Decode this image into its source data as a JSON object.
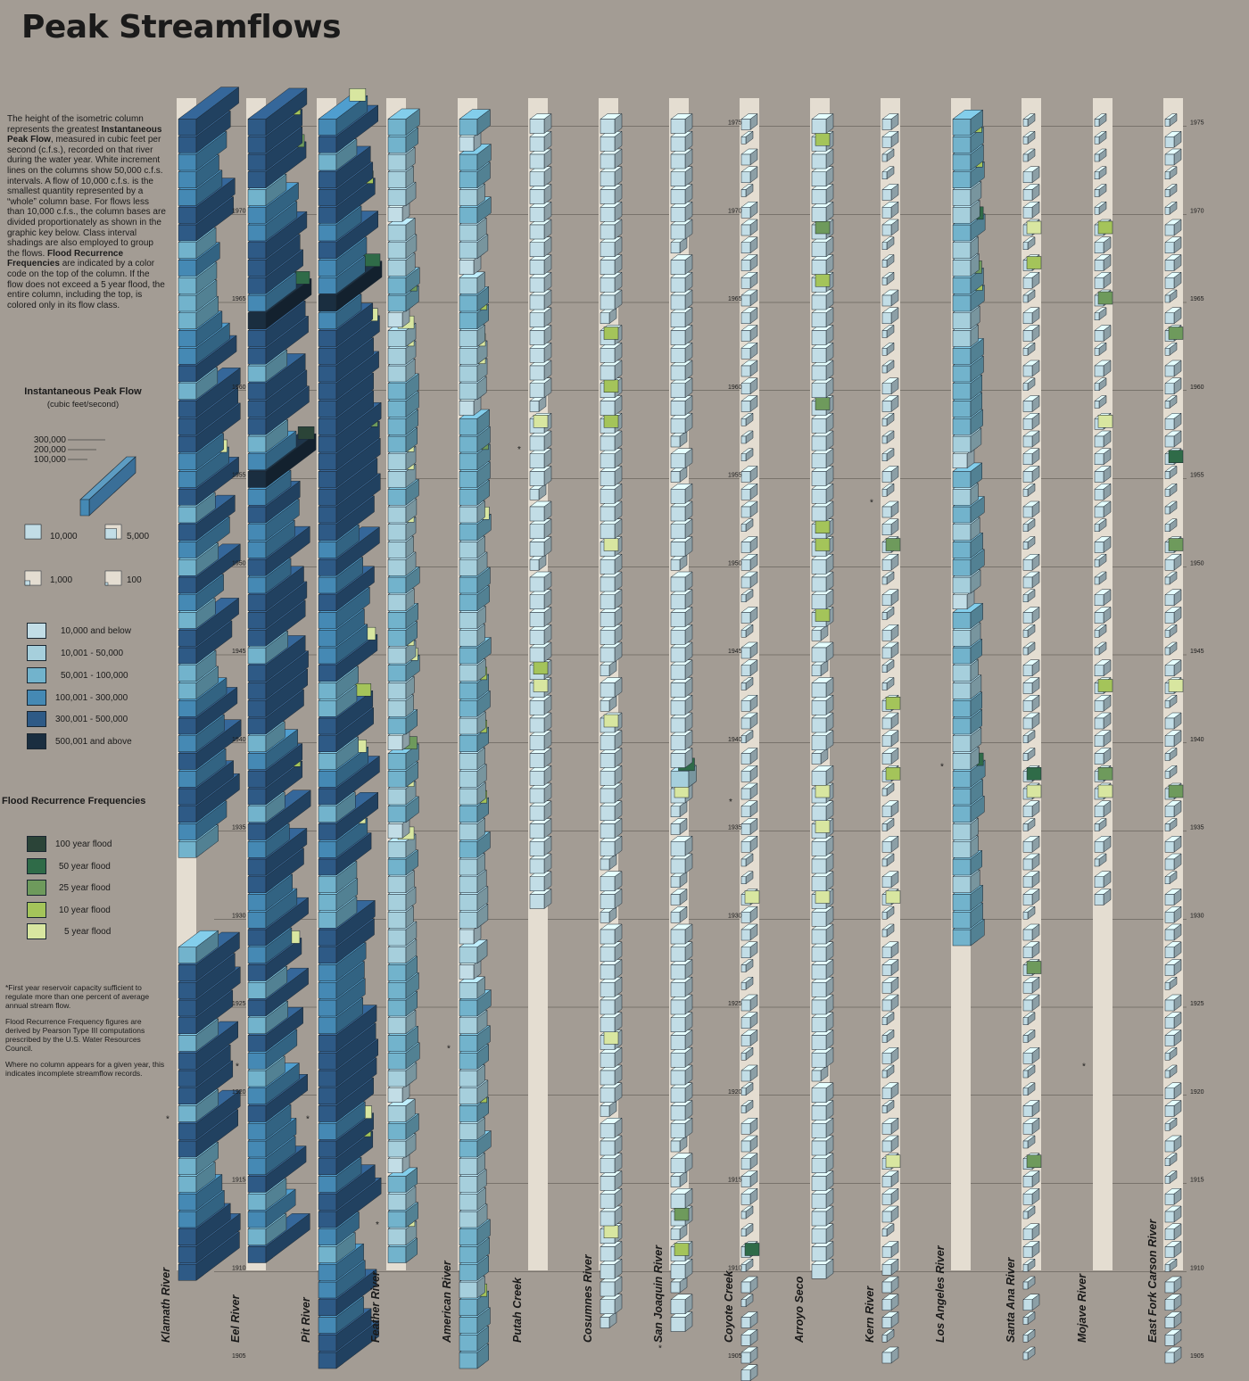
{
  "title": "Peak Streamflows",
  "intro": {
    "p1": "The height of the isometric column represents the greatest ",
    "b1": "Instantaneous Peak Flow",
    "p2": ", measured in cubic feet per second (c.f.s.), recorded on that river during the water year. White increment lines on the columns show 50,000 c.f.s. intervals. A flow of 10,000 c.f.s. is the smallest quantity represented by a “whole” column base. For flows less than 10,000 c.f.s., the column bases are divided proportionately as shown in the graphic key below. Class interval shadings are also employed to group the flows. ",
    "b2": "Flood Recurrence Frequencies",
    "p3": " are indicated by a color code on the top of the column. If the flow does not exceed a 5 year flood, the entire column, including the top, is colored only in its flow class."
  },
  "key": {
    "title": "Instantaneous Peak Flow",
    "subtitle": "(cubic feet/second)",
    "iso_labels": [
      "300,000",
      "200,000",
      "100,000"
    ],
    "base_labels": [
      "10,000",
      "5,000",
      "1,000",
      "100"
    ],
    "base_fracs": [
      1,
      0.5,
      0.1,
      0.01
    ]
  },
  "flow_classes": [
    {
      "label": "10,000 and below",
      "color": "#c2dde6"
    },
    {
      "label": "10,001 - 50,000",
      "color": "#a6cfdc"
    },
    {
      "label": "50,001 - 100,000",
      "color": "#72b3cc"
    },
    {
      "label": "100,001 - 300,000",
      "color": "#4589b4"
    },
    {
      "label": "300,001 - 500,000",
      "color": "#2e5a86"
    },
    {
      "label": "500,001 and above",
      "color": "#1a2e40"
    }
  ],
  "flood_frequencies": {
    "title": "Flood Recurrence Frequencies",
    "items": [
      {
        "label": "100 year flood",
        "color": "#2b4438"
      },
      {
        "label": "50 year flood",
        "color": "#2f6b48"
      },
      {
        "label": "25 year flood",
        "color": "#6e9a5c"
      },
      {
        "label": "10 year flood",
        "color": "#a4c45a"
      },
      {
        "label": "5 year flood",
        "color": "#d8e6a0"
      }
    ]
  },
  "notes": [
    "*First year reservoir capacity sufficient to regulate more than one percent of average annual stream flow.",
    "Flood Recurrence Frequency figures are derived by Pearson Type III computations prescribed by the U.S. Water Resources Council.",
    "Where no column appears for a given year, this indicates incomplete streamflow records."
  ],
  "chart_data": {
    "type": "isometric column chart",
    "title": "Peak Streamflows",
    "y": "water year",
    "years_range": [
      1905,
      1976
    ],
    "year_ticks": [
      1905,
      1910,
      1915,
      1920,
      1925,
      1930,
      1935,
      1940,
      1945,
      1950,
      1955,
      1960,
      1965,
      1970,
      1975
    ],
    "value_unit": "cubic feet/second",
    "increment": 50000,
    "rivers": [
      {
        "name": "Klamath River",
        "level": 3,
        "start": 1910,
        "gap": [
          1929,
          1933
        ],
        "reservoir_year": 1919,
        "floods": {
          "1955": 5
        }
      },
      {
        "name": "Eel River",
        "level": 3,
        "start": 1911,
        "reservoir_year": 1922,
        "floods": {
          "1964": 2,
          "1955": 1,
          "1974": 4,
          "1972": 3,
          "1937": 4,
          "1927": 5
        }
      },
      {
        "name": "Pit River",
        "level": 3,
        "start": 1905,
        "reservoir_year": 1919,
        "floods": {
          "1975": 5,
          "1970": 4,
          "1965": 2,
          "1962": 5,
          "1956": 3,
          "1944": 5,
          "1941": 4,
          "1938": 5,
          "1934": 5,
          "1917": 5,
          "1916": 4
        }
      },
      {
        "name": "Feather River",
        "level": 2,
        "start": 1911,
        "reservoir_year": 1913,
        "floods": {
          "1965": 3,
          "1963": 5,
          "1962": 5,
          "1956": 5,
          "1955": 5,
          "1952": 5,
          "1945": 5,
          "1944": 5,
          "1939": 3,
          "1937": 5,
          "1934": 5,
          "1912": 5
        }
      },
      {
        "name": "American River",
        "level": 2,
        "start": 1905,
        "reservoir_year": 1923,
        "floods": {
          "1964": 4,
          "1962": 5,
          "1961": 5,
          "1956": 3,
          "1952": 5,
          "1943": 4,
          "1940": 4,
          "1936": 4,
          "1919": 4,
          "1908": 4
        }
      },
      {
        "name": "Putah Creek",
        "level": 1,
        "start": 1931,
        "reservoir_year": 1957,
        "floods": {
          "1958": 5,
          "1944": 4,
          "1943": 5
        }
      },
      {
        "name": "Cosumnes River",
        "level": 1,
        "start": 1907,
        "floods": {
          "1963": 4,
          "1960": 4,
          "1958": 4,
          "1951": 5,
          "1941": 5,
          "1923": 5,
          "1912": 5
        }
      },
      {
        "name": "San Joaquin River",
        "level": 1,
        "start": 1907,
        "reservoir_year": 1906,
        "floods": {
          "1937": 5,
          "1938": 2,
          "1911": 4,
          "1913": 3
        }
      },
      {
        "name": "Coyote Creek",
        "level": 0,
        "start": 1904,
        "reservoir_year": 1937,
        "floods": {
          "1911": 2,
          "1931": 5
        }
      },
      {
        "name": "Arroyo Seco",
        "level": 1,
        "start": 1910,
        "floods": {
          "1974": 4,
          "1969": 3,
          "1966": 4,
          "1959": 3,
          "1952": 4,
          "1951": 4,
          "1947": 4,
          "1937": 5,
          "1935": 5,
          "1931": 5
        }
      },
      {
        "name": "Kern River",
        "level": 0,
        "start": 1905,
        "reservoir_year": 1954,
        "floods": {
          "1951": 3,
          "1942": 4,
          "1938": 4,
          "1931": 5,
          "1916": 5
        }
      },
      {
        "name": "Los Angeles River",
        "level": 2,
        "start": 1929,
        "reservoir_year": 1939,
        "floods": {
          "1974": 4,
          "1972": 4,
          "1969": 2,
          "1966": 3,
          "1965": 4,
          "1938": 2
        }
      },
      {
        "name": "Santa Ana River",
        "level": 0,
        "start": 1905,
        "reservoir_year": 1910,
        "floods": {
          "1969": 5,
          "1967": 4,
          "1938": 2,
          "1937": 5,
          "1927": 3,
          "1916": 3
        }
      },
      {
        "name": "Mojave River",
        "level": 0,
        "start": 1931,
        "reservoir_year": 1922,
        "floods": {
          "1969": 4,
          "1965": 3,
          "1958": 5,
          "1943": 4,
          "1938": 3,
          "1937": 5
        }
      },
      {
        "name": "East Fork Carson River",
        "level": 0,
        "start": 1905,
        "floods": {
          "1963": 3,
          "1956": 2,
          "1951": 3,
          "1943": 5,
          "1937": 3
        }
      }
    ]
  }
}
